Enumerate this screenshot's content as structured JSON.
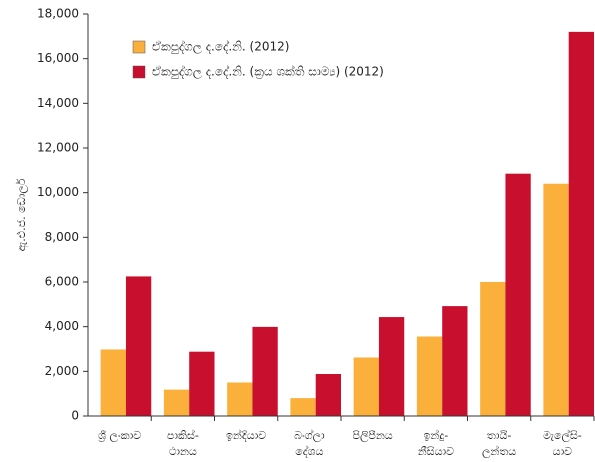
{
  "chart_data": {
    "type": "bar",
    "ylabel": "ඇ.එ.ජ. ඩොලර්",
    "categories": [
      [
        "ශ්‍රී ලංකාව"
      ],
      [
        "පාකිස්-",
        "ථානය"
      ],
      [
        "ඉන්දියාව"
      ],
      [
        "බංග්ලා",
        "දේශය"
      ],
      [
        "පිලිපීනය"
      ],
      [
        "ඉන්දු-",
        "නීසියාව"
      ],
      [
        "තායි-",
        "ලන්තය"
      ],
      [
        "මැලේසි-",
        "යාව"
      ]
    ],
    "series": [
      {
        "name": "ඒකපුද්ගල ද.දේ.නි. (2012)",
        "color": "#fbb03b",
        "values": [
          2980,
          1180,
          1500,
          800,
          2620,
          3560,
          6000,
          10400
        ]
      },
      {
        "name": "ඒකපුද්ගල ද.දේ.නි. (ක්‍රය ශක්ති සාම්‍ය) (2012)",
        "color": "#c8102e",
        "values": [
          6250,
          2880,
          3990,
          1880,
          4430,
          4920,
          10850,
          17200
        ]
      }
    ],
    "ylim": [
      0,
      18000
    ],
    "yticks": [
      0,
      {
        "value": 2000,
        "label": "2,000"
      },
      {
        "value": 4000,
        "label": "4,000"
      },
      {
        "value": 6000,
        "label": "6,000"
      },
      {
        "value": 8000,
        "label": "8,000"
      },
      {
        "value": 10000,
        "label": "10,000"
      },
      {
        "value": 12000,
        "label": "12,000"
      },
      {
        "value": 14000,
        "label": "14,000"
      },
      {
        "value": 16000,
        "label": "16,000"
      },
      {
        "value": 18000,
        "label": "18,000"
      }
    ],
    "legend": "upper left"
  }
}
